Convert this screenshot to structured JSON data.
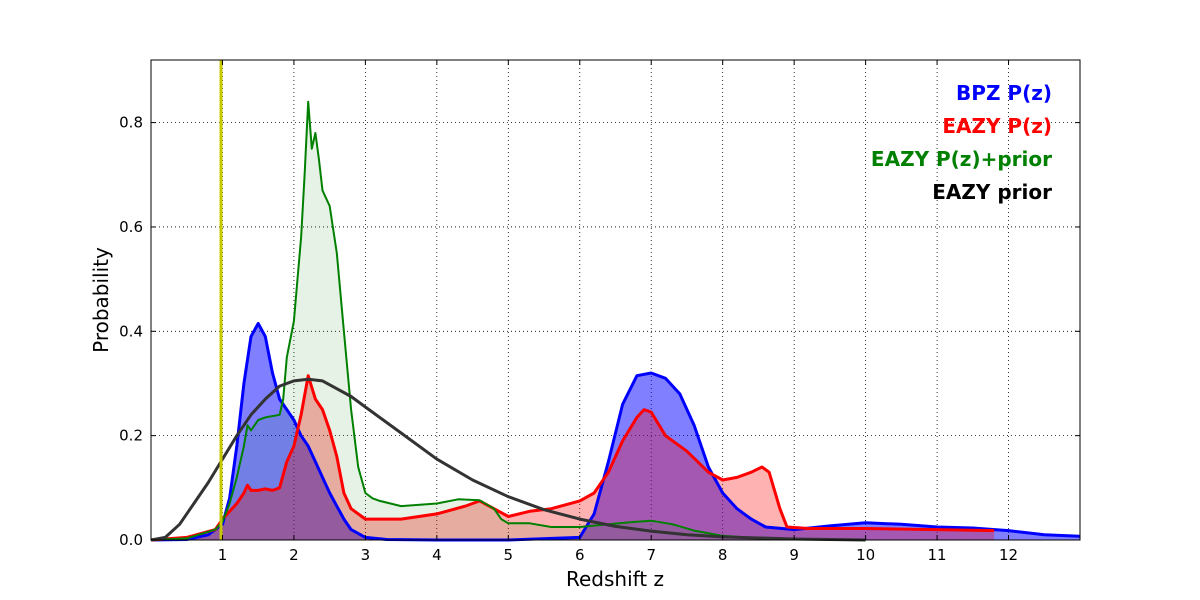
{
  "chart_data": {
    "type": "area",
    "xlabel": "Redshift z",
    "ylabel": "Probability",
    "xlim": [
      0,
      13
    ],
    "ylim": [
      0,
      0.92
    ],
    "x_ticks": [
      1,
      2,
      3,
      4,
      5,
      6,
      7,
      8,
      9,
      10,
      11,
      12
    ],
    "x_tick_labels": [
      "1",
      "2",
      "3",
      "4",
      "5",
      "6",
      "7",
      "8",
      "9",
      "10",
      "11",
      "12"
    ],
    "y_ticks": [
      0.0,
      0.2,
      0.4,
      0.6,
      0.8
    ],
    "y_tick_labels": [
      "0.0",
      "0.2",
      "0.4",
      "0.6",
      "0.8"
    ],
    "grid": true,
    "legend_position": "top-right",
    "vertical_marker": {
      "x": 0.98,
      "color": "#c8c800"
    },
    "series": [
      {
        "name": "BPZ P(z)",
        "color": "#0000ff",
        "fill": "#0000ff",
        "fill_opacity": 0.5,
        "line_width": 3,
        "points": [
          [
            0,
            0
          ],
          [
            0.5,
            0.001
          ],
          [
            0.8,
            0.01
          ],
          [
            1.0,
            0.03
          ],
          [
            1.1,
            0.08
          ],
          [
            1.2,
            0.18
          ],
          [
            1.3,
            0.3
          ],
          [
            1.4,
            0.39
          ],
          [
            1.5,
            0.415
          ],
          [
            1.6,
            0.39
          ],
          [
            1.7,
            0.32
          ],
          [
            1.8,
            0.27
          ],
          [
            1.9,
            0.25
          ],
          [
            2.0,
            0.23
          ],
          [
            2.1,
            0.2
          ],
          [
            2.2,
            0.18
          ],
          [
            2.3,
            0.15
          ],
          [
            2.4,
            0.12
          ],
          [
            2.5,
            0.09
          ],
          [
            2.6,
            0.065
          ],
          [
            2.7,
            0.04
          ],
          [
            2.8,
            0.02
          ],
          [
            3.0,
            0.005
          ],
          [
            3.3,
            0.001
          ],
          [
            4.0,
            0
          ],
          [
            5.0,
            0
          ],
          [
            6.0,
            0.005
          ],
          [
            6.2,
            0.05
          ],
          [
            6.4,
            0.15
          ],
          [
            6.6,
            0.26
          ],
          [
            6.8,
            0.315
          ],
          [
            7.0,
            0.32
          ],
          [
            7.2,
            0.31
          ],
          [
            7.4,
            0.28
          ],
          [
            7.6,
            0.22
          ],
          [
            7.8,
            0.14
          ],
          [
            8.0,
            0.09
          ],
          [
            8.2,
            0.06
          ],
          [
            8.4,
            0.04
          ],
          [
            8.6,
            0.025
          ],
          [
            9.0,
            0.02
          ],
          [
            9.5,
            0.027
          ],
          [
            10.0,
            0.033
          ],
          [
            10.5,
            0.03
          ],
          [
            11.0,
            0.025
          ],
          [
            11.5,
            0.023
          ],
          [
            12.0,
            0.018
          ],
          [
            12.5,
            0.01
          ],
          [
            13.0,
            0.007
          ]
        ]
      },
      {
        "name": "EAZY P(z)",
        "color": "#ff0000",
        "fill": "#ff0000",
        "fill_opacity": 0.3,
        "line_width": 3,
        "points": [
          [
            0,
            0
          ],
          [
            0.5,
            0.005
          ],
          [
            0.9,
            0.02
          ],
          [
            1.0,
            0.04
          ],
          [
            1.2,
            0.07
          ],
          [
            1.3,
            0.09
          ],
          [
            1.35,
            0.105
          ],
          [
            1.4,
            0.095
          ],
          [
            1.5,
            0.095
          ],
          [
            1.6,
            0.098
          ],
          [
            1.7,
            0.095
          ],
          [
            1.8,
            0.1
          ],
          [
            1.9,
            0.15
          ],
          [
            2.0,
            0.18
          ],
          [
            2.1,
            0.24
          ],
          [
            2.2,
            0.315
          ],
          [
            2.3,
            0.27
          ],
          [
            2.4,
            0.25
          ],
          [
            2.5,
            0.21
          ],
          [
            2.6,
            0.16
          ],
          [
            2.7,
            0.09
          ],
          [
            2.8,
            0.06
          ],
          [
            3.0,
            0.04
          ],
          [
            3.3,
            0.04
          ],
          [
            3.5,
            0.04
          ],
          [
            4.0,
            0.05
          ],
          [
            4.4,
            0.065
          ],
          [
            4.6,
            0.075
          ],
          [
            4.8,
            0.06
          ],
          [
            5.0,
            0.045
          ],
          [
            5.3,
            0.055
          ],
          [
            5.6,
            0.06
          ],
          [
            6.0,
            0.075
          ],
          [
            6.2,
            0.09
          ],
          [
            6.4,
            0.13
          ],
          [
            6.6,
            0.19
          ],
          [
            6.8,
            0.235
          ],
          [
            6.9,
            0.25
          ],
          [
            7.0,
            0.245
          ],
          [
            7.2,
            0.2
          ],
          [
            7.5,
            0.17
          ],
          [
            7.8,
            0.13
          ],
          [
            8.0,
            0.115
          ],
          [
            8.2,
            0.12
          ],
          [
            8.4,
            0.13
          ],
          [
            8.55,
            0.14
          ],
          [
            8.65,
            0.13
          ],
          [
            8.8,
            0.06
          ],
          [
            8.9,
            0.025
          ],
          [
            9.2,
            0.022
          ],
          [
            10.0,
            0.022
          ],
          [
            11.0,
            0.02
          ],
          [
            11.8,
            0.018
          ]
        ]
      },
      {
        "name": "EAZY P(z)+prior",
        "color": "#008000",
        "fill": "#008000",
        "fill_opacity": 0.1,
        "line_width": 2,
        "points": [
          [
            0,
            0
          ],
          [
            0.5,
            0.003
          ],
          [
            0.9,
            0.02
          ],
          [
            1.0,
            0.035
          ],
          [
            1.1,
            0.07
          ],
          [
            1.2,
            0.12
          ],
          [
            1.3,
            0.18
          ],
          [
            1.35,
            0.22
          ],
          [
            1.4,
            0.21
          ],
          [
            1.5,
            0.23
          ],
          [
            1.6,
            0.235
          ],
          [
            1.8,
            0.24
          ],
          [
            1.85,
            0.27
          ],
          [
            1.9,
            0.35
          ],
          [
            2.0,
            0.42
          ],
          [
            2.05,
            0.5
          ],
          [
            2.1,
            0.58
          ],
          [
            2.15,
            0.7
          ],
          [
            2.2,
            0.84
          ],
          [
            2.25,
            0.75
          ],
          [
            2.3,
            0.78
          ],
          [
            2.35,
            0.73
          ],
          [
            2.4,
            0.67
          ],
          [
            2.5,
            0.64
          ],
          [
            2.6,
            0.55
          ],
          [
            2.7,
            0.4
          ],
          [
            2.8,
            0.25
          ],
          [
            2.9,
            0.14
          ],
          [
            3.0,
            0.09
          ],
          [
            3.1,
            0.08
          ],
          [
            3.2,
            0.075
          ],
          [
            3.5,
            0.065
          ],
          [
            4.0,
            0.07
          ],
          [
            4.3,
            0.078
          ],
          [
            4.6,
            0.076
          ],
          [
            4.8,
            0.06
          ],
          [
            4.9,
            0.04
          ],
          [
            5.0,
            0.032
          ],
          [
            5.3,
            0.032
          ],
          [
            5.6,
            0.025
          ],
          [
            6.0,
            0.025
          ],
          [
            6.4,
            0.03
          ],
          [
            6.8,
            0.035
          ],
          [
            7.0,
            0.037
          ],
          [
            7.3,
            0.03
          ],
          [
            7.6,
            0.018
          ],
          [
            8.0,
            0.008
          ],
          [
            8.5,
            0.003
          ],
          [
            9.0,
            0.001
          ]
        ]
      },
      {
        "name": "EAZY prior",
        "color": "#333333",
        "fill": "none",
        "fill_opacity": 0,
        "line_width": 3,
        "points": [
          [
            0,
            0
          ],
          [
            0.2,
            0.005
          ],
          [
            0.4,
            0.03
          ],
          [
            0.6,
            0.07
          ],
          [
            0.8,
            0.11
          ],
          [
            1.0,
            0.155
          ],
          [
            1.2,
            0.2
          ],
          [
            1.4,
            0.24
          ],
          [
            1.6,
            0.27
          ],
          [
            1.8,
            0.295
          ],
          [
            2.0,
            0.305
          ],
          [
            2.2,
            0.308
          ],
          [
            2.4,
            0.305
          ],
          [
            2.6,
            0.29
          ],
          [
            2.8,
            0.275
          ],
          [
            3.0,
            0.255
          ],
          [
            3.5,
            0.205
          ],
          [
            4.0,
            0.155
          ],
          [
            4.5,
            0.115
          ],
          [
            5.0,
            0.083
          ],
          [
            5.5,
            0.058
          ],
          [
            6.0,
            0.04
          ],
          [
            6.5,
            0.026
          ],
          [
            7.0,
            0.017
          ],
          [
            7.5,
            0.01
          ],
          [
            8.0,
            0.006
          ],
          [
            9.0,
            0.002
          ],
          [
            10.0,
            0
          ]
        ]
      }
    ]
  }
}
